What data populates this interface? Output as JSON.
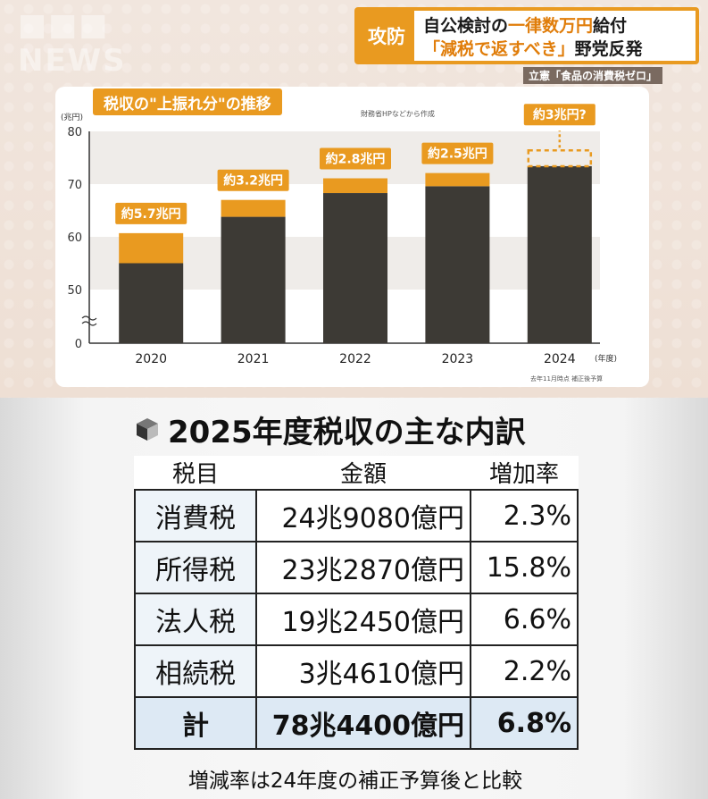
{
  "top": {
    "tag": "攻防",
    "headline_line1_a": "自公検討の",
    "headline_line1_em": "一律数万円",
    "headline_line1_b": "給付",
    "headline_line2_em": "「減税で返すべき」",
    "headline_line2_b": "野党反発",
    "subline": "立憲「食品の消費税ゼロ」",
    "source_note": "財務省HPなどから作成",
    "foot_note": "去年11月時点 補正後予算"
  },
  "chart_data": {
    "type": "bar",
    "title": "税収の\"上振れ分\"の推移",
    "ylabel": "(兆円)",
    "xlabel": "(年度)",
    "ylim": [
      40,
      80
    ],
    "yticks": [
      "80",
      "70",
      "60",
      "50",
      "0"
    ],
    "axis_break": true,
    "categories": [
      "2020",
      "2021",
      "2022",
      "2023",
      "2024"
    ],
    "series": [
      {
        "role": "base",
        "values": [
          55.0,
          63.8,
          68.3,
          69.6,
          73.4
        ]
      },
      {
        "role": "upswing",
        "values": [
          5.7,
          3.2,
          2.8,
          2.5,
          3.0
        ],
        "estimated_last": true
      }
    ],
    "bar_labels": [
      "約5.7兆円",
      "約3.2兆円",
      "約2.8兆円",
      "約2.5兆円",
      "約3兆円?"
    ],
    "colors": {
      "base": "#3d3a35",
      "upswing": "#e99a20",
      "label_bg": "#e99a20"
    }
  },
  "table": {
    "title": "2025年度税収の主な内訳",
    "headers": [
      "税目",
      "金額",
      "増加率"
    ],
    "rows": [
      {
        "item": "消費税",
        "amount": "24兆9080億円",
        "rate": "2.3%"
      },
      {
        "item": "所得税",
        "amount": "23兆2870億円",
        "rate": "15.8%"
      },
      {
        "item": "法人税",
        "amount": "19兆2450億円",
        "rate": "6.6%"
      },
      {
        "item": "相続税",
        "amount": "3兆4610億円",
        "rate": "2.2%"
      }
    ],
    "total": {
      "item": "計",
      "amount": "78兆4400億円",
      "rate": "6.8%"
    },
    "note": "増減率は24年度の補正予算後と比較"
  }
}
